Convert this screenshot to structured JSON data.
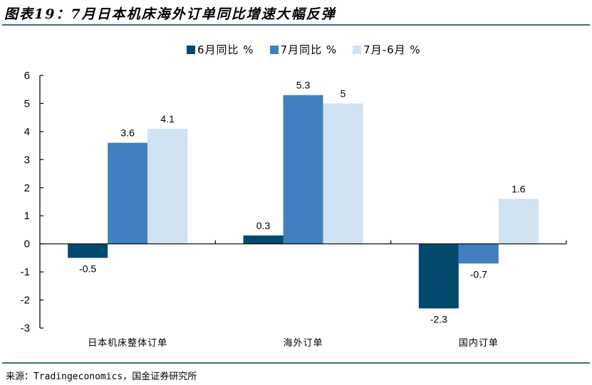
{
  "title": "图表19：7月日本机床海外订单同比增速大幅反弹",
  "source": "来源：Tradingeconomics，国金证券研究所",
  "legend": [
    {
      "label": "6月同比 %",
      "color": "#014a6e"
    },
    {
      "label": "7月同比 %",
      "color": "#4080bf"
    },
    {
      "label": "7月-6月 %",
      "color": "#d1e2f2"
    }
  ],
  "chart_data": {
    "type": "bar",
    "title": "7月日本机床海外订单同比增速大幅反弹",
    "xlabel": "",
    "ylabel": "",
    "categories": [
      "日本机床整体订单",
      "海外订单",
      "国内订单"
    ],
    "series": [
      {
        "name": "6月同比 %",
        "color": "#014a6e",
        "values": [
          -0.5,
          0.3,
          -2.3
        ]
      },
      {
        "name": "7月同比 %",
        "color": "#4080bf",
        "values": [
          3.6,
          5.3,
          -0.7
        ]
      },
      {
        "name": "7月-6月 %",
        "color": "#d1e2f2",
        "values": [
          4.1,
          5,
          1.6
        ]
      }
    ],
    "ylim": [
      -3,
      6
    ],
    "yticks": [
      6,
      5,
      4,
      3,
      2,
      1,
      0,
      -1,
      -2,
      -3
    ],
    "grid": false,
    "legend_position": "top",
    "data_labels": true
  }
}
